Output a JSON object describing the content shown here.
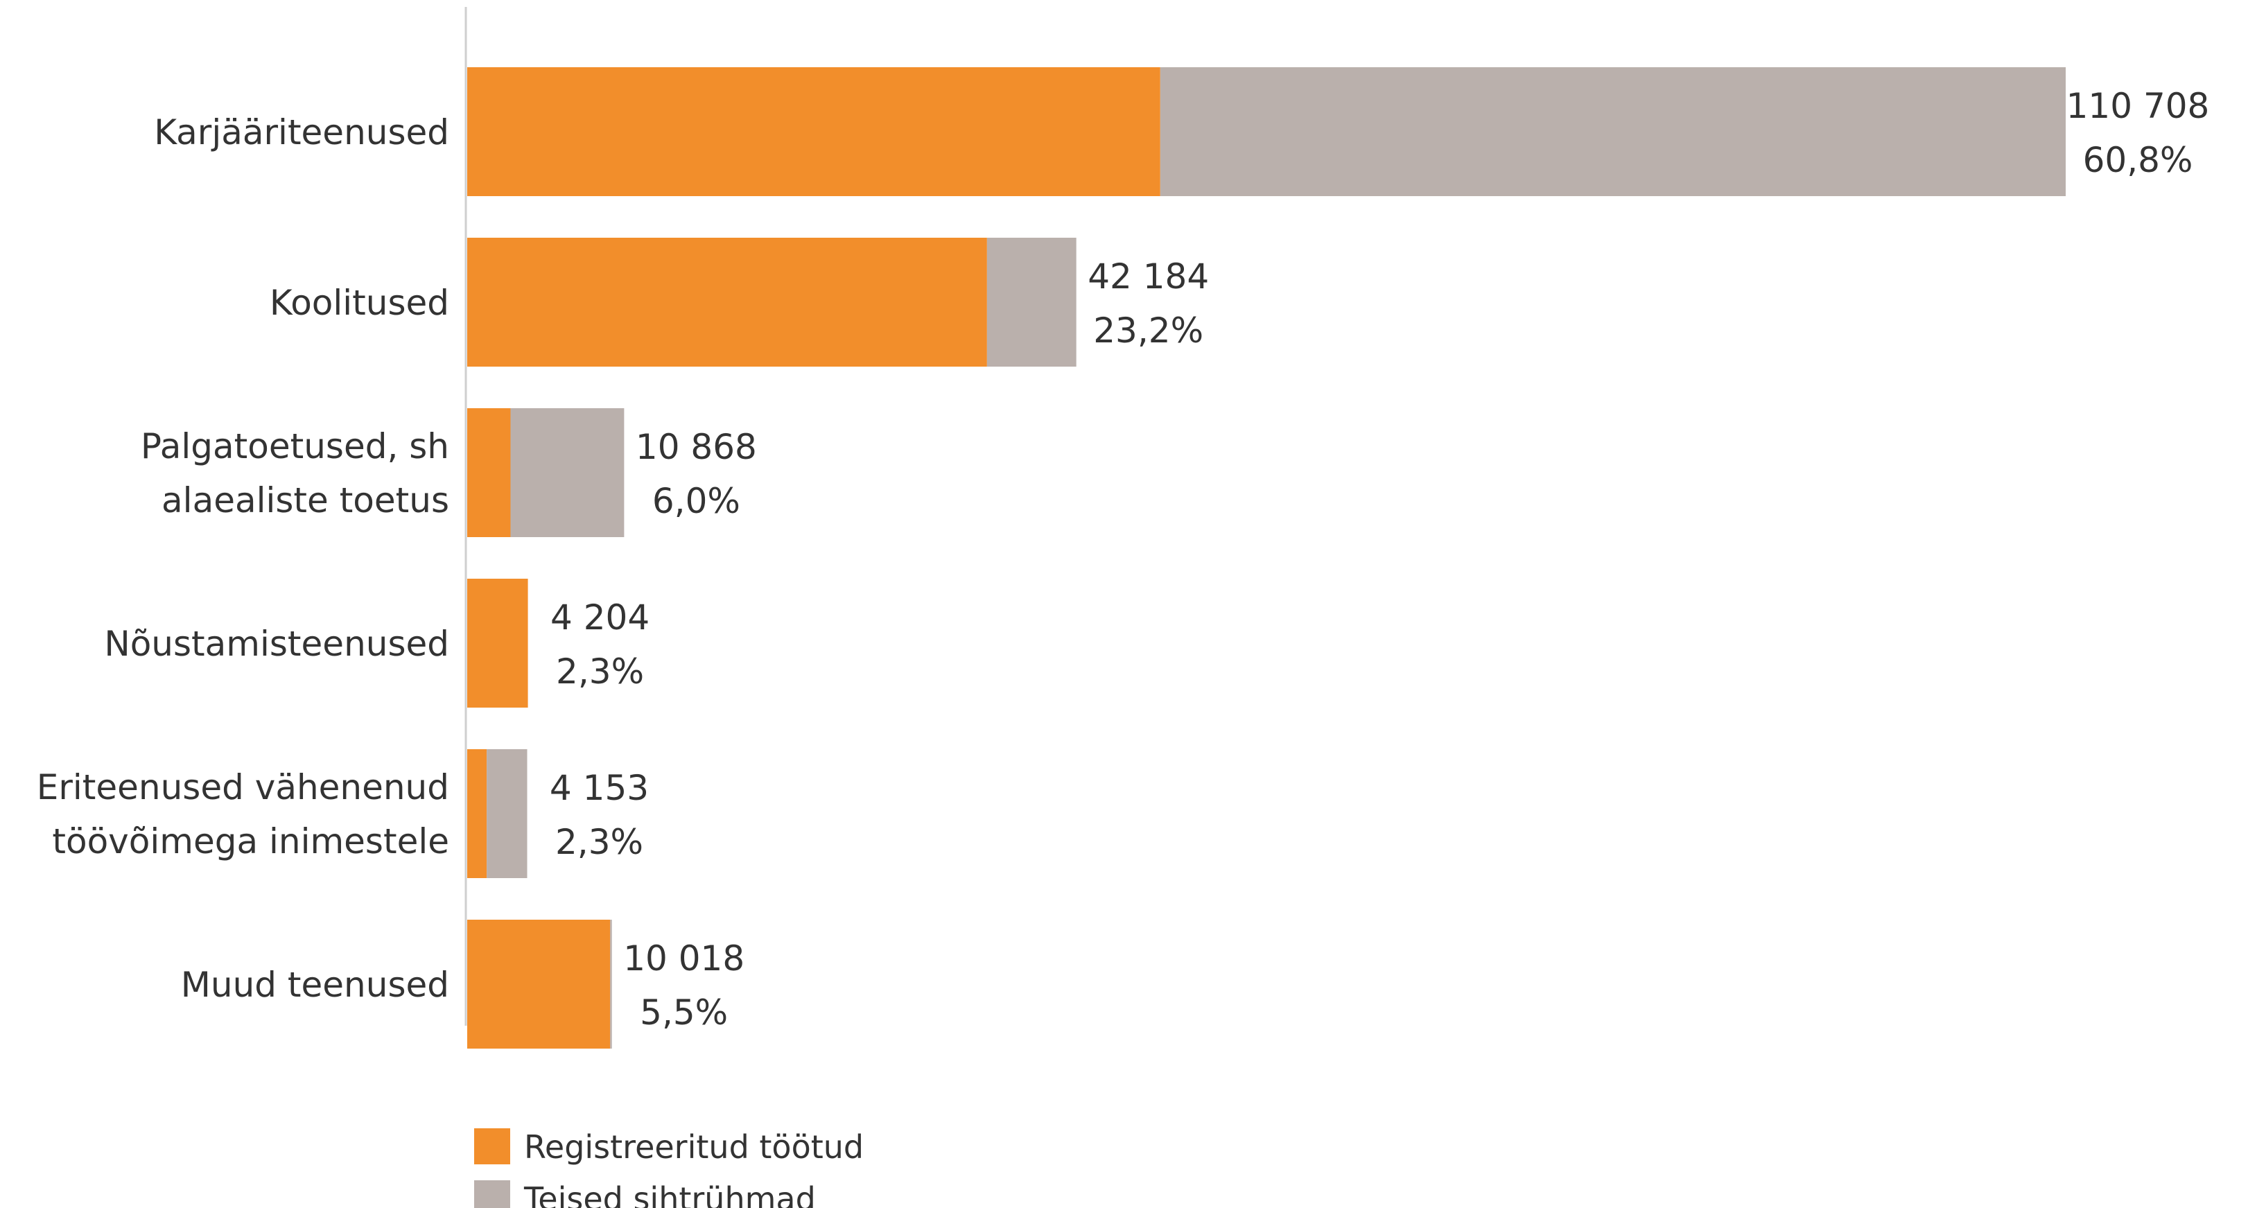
{
  "chart_data": {
    "type": "bar",
    "orientation": "horizontal",
    "stacked": true,
    "categories": [
      [
        "Karjääriteenused"
      ],
      [
        "Koolitused"
      ],
      [
        "Palgatoetused, sh",
        "alaealiste toetus"
      ],
      [
        "Nõustamisteenused"
      ],
      [
        "Eriteenused vähenenud",
        "töövõimega inimestele"
      ],
      [
        "Muud teenused"
      ]
    ],
    "series": [
      {
        "name": "Registreeritud töötud",
        "color": "#F28E2B",
        "values": [
          48000,
          36000,
          3000,
          4204,
          1350,
          9900
        ]
      },
      {
        "name": "Teised sihtrühmad",
        "color": "#BAB0AC",
        "values": [
          62708,
          6184,
          7868,
          0,
          2803,
          118
        ]
      }
    ],
    "totals": [
      "110 708",
      "42 184",
      "10 868",
      "4 204",
      "4 153",
      "10 018"
    ],
    "shares": [
      "60,8%",
      "23,2%",
      "6,0%",
      "2,3%",
      "2,3%",
      "5,5%"
    ],
    "total_values": [
      110708,
      42184,
      10868,
      4204,
      4153,
      10018
    ],
    "xlim": [
      0,
      110708
    ],
    "legend_position": "bottom-left",
    "grid": false
  }
}
